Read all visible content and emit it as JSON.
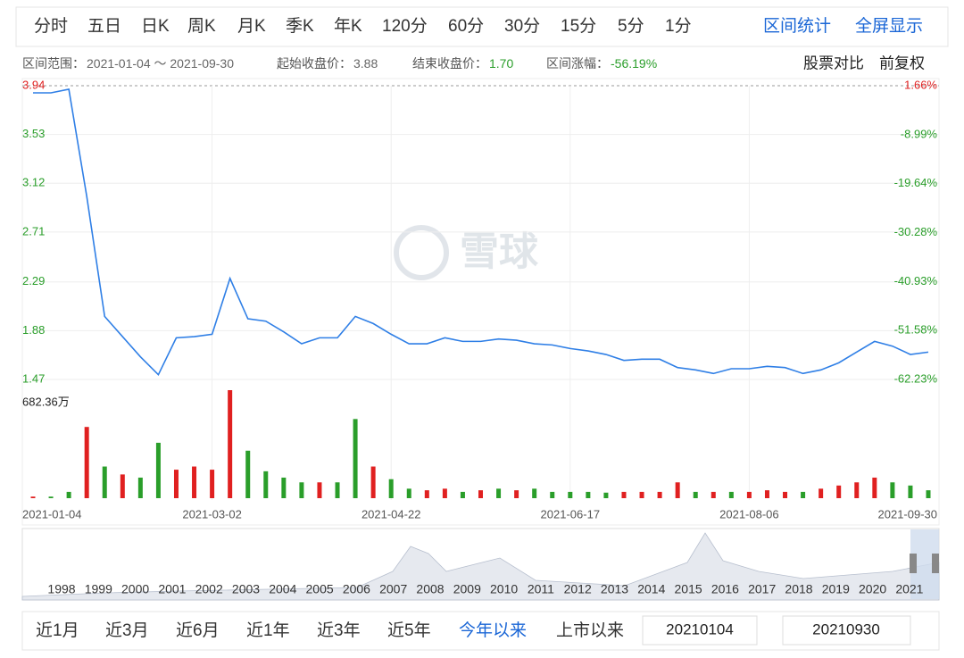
{
  "tabs": [
    "分时",
    "五日",
    "日K",
    "周K",
    "月K",
    "季K",
    "年K",
    "120分",
    "60分",
    "30分",
    "15分",
    "5分",
    "1分"
  ],
  "tools": [
    "区间统计",
    "全屏显示"
  ],
  "info": [
    {
      "label": "区间范围：",
      "value": "2021-01-04 ～ 2021-09-30"
    },
    {
      "label": "起始收盘价：",
      "value": "3.88"
    },
    {
      "label": "结束收盘价：",
      "value": "1.70"
    },
    {
      "label": "区间涨幅：",
      "value": "-56.19%"
    }
  ],
  "links": [
    "股票对比",
    "前复权"
  ],
  "watermark": "雪球",
  "chart_data": {
    "type": "line",
    "categories": [
      "2021-01-04",
      null,
      null,
      null,
      null,
      null,
      null,
      null,
      null,
      null,
      "2021-03-02",
      null,
      null,
      null,
      null,
      null,
      null,
      null,
      null,
      null,
      "2021-04-22",
      null,
      null,
      null,
      null,
      null,
      null,
      null,
      null,
      null,
      "2021-06-17",
      null,
      null,
      null,
      null,
      null,
      null,
      null,
      null,
      null,
      "2021-08-06",
      null,
      null,
      null,
      null,
      null,
      null,
      null,
      null,
      null,
      "2021-09-30"
    ],
    "series": [
      {
        "color": "#2f7fe6",
        "values": [
          3.88,
          3.88,
          3.91,
          3.01,
          2.0,
          1.83,
          1.66,
          1.51,
          1.82,
          1.83,
          1.85,
          2.32,
          1.98,
          1.96,
          1.87,
          1.77,
          1.82,
          1.82,
          2.0,
          1.94,
          1.85,
          1.77,
          1.77,
          1.82,
          1.79,
          1.79,
          1.81,
          1.8,
          1.77,
          1.76,
          1.73,
          1.71,
          1.68,
          1.63,
          1.64,
          1.64,
          1.57,
          1.55,
          1.52,
          1.56,
          1.56,
          1.58,
          1.57,
          1.52,
          1.55,
          1.61,
          1.7,
          1.79,
          1.75,
          1.68,
          1.7
        ]
      }
    ],
    "ylim": [
      1.47,
      3.94
    ],
    "yticks": [
      3.94,
      3.53,
      3.12,
      2.71,
      2.29,
      1.88,
      1.47
    ],
    "y2lim": [
      -62.23,
      1.66
    ],
    "y2ticks": [
      {
        "value": 1.66,
        "label": "1.66%"
      },
      {
        "value": -8.99,
        "label": "-8.99%"
      },
      {
        "value": -19.64,
        "label": "-19.64%"
      },
      {
        "value": -30.28,
        "label": "-30.28%"
      },
      {
        "value": -40.93,
        "label": "-40.93%"
      },
      {
        "value": -51.58,
        "label": "-51.58%"
      },
      {
        "value": -62.23,
        "label": "-62.23%"
      }
    ],
    "volume": {
      "values": [
        10,
        10,
        40,
        450,
        200,
        150,
        130,
        350,
        180,
        200,
        180,
        682.36,
        300,
        170,
        130,
        100,
        100,
        100,
        500,
        200,
        120,
        60,
        50,
        60,
        40,
        50,
        60,
        50,
        60,
        40,
        40,
        40,
        35,
        40,
        40,
        40,
        100,
        40,
        40,
        40,
        40,
        50,
        40,
        40,
        60,
        80,
        100,
        130,
        100,
        80,
        50
      ],
      "colors": [
        "#e02020",
        "#2a9e2a",
        "#2a9e2a",
        "#e02020",
        "#2a9e2a",
        "#e02020",
        "#2a9e2a",
        "#2a9e2a",
        "#e02020",
        "#e02020",
        "#e02020",
        "#e02020",
        "#2a9e2a",
        "#2a9e2a",
        "#2a9e2a",
        "#2a9e2a",
        "#e02020",
        "#2a9e2a",
        "#2a9e2a",
        "#e02020",
        "#2a9e2a",
        "#2a9e2a",
        "#e02020",
        "#e02020",
        "#2a9e2a",
        "#e02020",
        "#2a9e2a",
        "#e02020",
        "#2a9e2a",
        "#2a9e2a",
        "#2a9e2a",
        "#2a9e2a",
        "#2a9e2a",
        "#e02020",
        "#e02020",
        "#e02020",
        "#e02020",
        "#2a9e2a",
        "#e02020",
        "#2a9e2a",
        "#e02020",
        "#e02020",
        "#e02020",
        "#2a9e2a",
        "#e02020",
        "#e02020",
        "#e02020",
        "#e02020",
        "#2a9e2a",
        "#2a9e2a",
        "#2a9e2a"
      ],
      "ylim": [
        0,
        682.36
      ],
      "yticks": [
        {
          "value": 682.36,
          "label": "682.36万"
        }
      ]
    },
    "grid": true
  },
  "navigator": {
    "years": [
      "1998",
      "1999",
      "2000",
      "2001",
      "2002",
      "2003",
      "2004",
      "2005",
      "2006",
      "2007",
      "2008",
      "2009",
      "2010",
      "2011",
      "2012",
      "2013",
      "2014",
      "2015",
      "2016",
      "2017",
      "2018",
      "2019",
      "2020",
      "2021"
    ]
  },
  "range_buttons": [
    "近1月",
    "近3月",
    "近6月",
    "近1年",
    "近3年",
    "近5年",
    "今年以来",
    "上市以来"
  ],
  "active_range": 6,
  "date_inputs": [
    "20210104",
    "20210930"
  ]
}
